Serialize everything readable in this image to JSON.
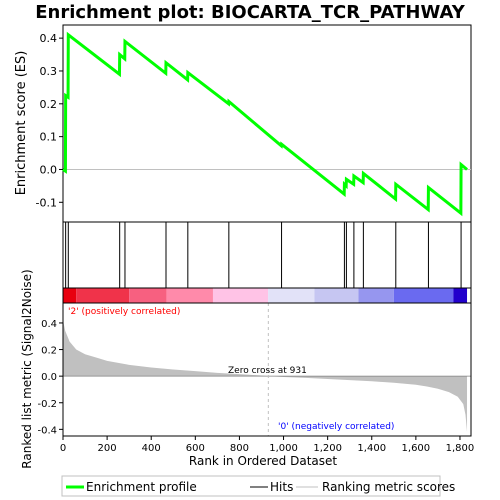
{
  "chart_data": {
    "type": "line",
    "title": "Enrichment plot: BIOCARTA_TCR_PATHWAY",
    "xlabel": "Rank in Ordered Dataset",
    "ylabel_top": "Enrichment score (ES)",
    "ylabel_bottom": "Ranked list metric (Signal2Noise)",
    "xlim": [
      0,
      1850
    ],
    "x_ticks": [
      0,
      200,
      400,
      600,
      800,
      1000,
      1200,
      1400,
      1600,
      1800
    ],
    "x_tick_labels": [
      "0",
      "200",
      "400",
      "600",
      "800",
      "1,000",
      "1,200",
      "1,400",
      "1,600",
      "1,800"
    ],
    "es_ylim": [
      -0.16,
      0.44
    ],
    "es_ticks": [
      -0.1,
      0.0,
      0.1,
      0.2,
      0.3,
      0.4
    ],
    "es_tick_labels": [
      "-0.1",
      "0.0",
      "0.1",
      "0.2",
      "0.3",
      "0.4"
    ],
    "metric_ylim": [
      -0.45,
      0.55
    ],
    "metric_ticks": [
      -0.4,
      -0.2,
      0.0,
      0.2,
      0.4
    ],
    "metric_tick_labels": [
      "-0.4",
      "-0.2",
      "0.0",
      "0.2",
      "0.4"
    ],
    "total_genes": 1832,
    "zero_cross_rank": 931,
    "zero_cross_label": "Zero cross at 931",
    "pos_label": "'2' (positively correlated)",
    "neg_label": "'0' (negatively correlated)",
    "hits": [
      12,
      24,
      257,
      281,
      467,
      566,
      752,
      991,
      1276,
      1285,
      1319,
      1362,
      1509,
      1657,
      1805
    ],
    "running_es": [
      [
        0,
        0.0
      ],
      [
        11,
        -0.005
      ],
      [
        12,
        0.225
      ],
      [
        23,
        0.22
      ],
      [
        24,
        0.41
      ],
      [
        256,
        0.29
      ],
      [
        257,
        0.35
      ],
      [
        280,
        0.337
      ],
      [
        281,
        0.39
      ],
      [
        466,
        0.293
      ],
      [
        467,
        0.325
      ],
      [
        565,
        0.273
      ],
      [
        566,
        0.295
      ],
      [
        751,
        0.2
      ],
      [
        752,
        0.207
      ],
      [
        990,
        0.072
      ],
      [
        991,
        0.077
      ],
      [
        1275,
        -0.075
      ],
      [
        1276,
        -0.045
      ],
      [
        1284,
        -0.05
      ],
      [
        1285,
        -0.03
      ],
      [
        1318,
        -0.045
      ],
      [
        1319,
        -0.02
      ],
      [
        1361,
        -0.04
      ],
      [
        1362,
        -0.012
      ],
      [
        1508,
        -0.09
      ],
      [
        1509,
        -0.045
      ],
      [
        1656,
        -0.122
      ],
      [
        1657,
        -0.055
      ],
      [
        1804,
        -0.133
      ],
      [
        1805,
        0.015
      ],
      [
        1832,
        0.0
      ]
    ],
    "metric_curve": [
      [
        0,
        0.42
      ],
      [
        10,
        0.34
      ],
      [
        30,
        0.26
      ],
      [
        60,
        0.2
      ],
      [
        100,
        0.165
      ],
      [
        150,
        0.14
      ],
      [
        200,
        0.115
      ],
      [
        300,
        0.085
      ],
      [
        400,
        0.065
      ],
      [
        500,
        0.05
      ],
      [
        600,
        0.038
      ],
      [
        700,
        0.025
      ],
      [
        800,
        0.015
      ],
      [
        900,
        0.005
      ],
      [
        931,
        0.0
      ],
      [
        1000,
        -0.006
      ],
      [
        1100,
        -0.013
      ],
      [
        1200,
        -0.021
      ],
      [
        1300,
        -0.03
      ],
      [
        1400,
        -0.038
      ],
      [
        1500,
        -0.05
      ],
      [
        1600,
        -0.065
      ],
      [
        1650,
        -0.078
      ],
      [
        1700,
        -0.095
      ],
      [
        1750,
        -0.12
      ],
      [
        1790,
        -0.155
      ],
      [
        1815,
        -0.21
      ],
      [
        1825,
        -0.29
      ],
      [
        1832,
        -0.42
      ]
    ],
    "colors": {
      "es_line": "#00ff00",
      "hit_line": "#000000",
      "metric_fill": "#c0c0c0",
      "zero_line": "#c0c0c0",
      "pos_text": "#ff0000",
      "neg_text": "#0000ff"
    },
    "heatmap_colors": [
      [
        0,
        60,
        "#e8000f"
      ],
      [
        60,
        300,
        "#f0334a"
      ],
      [
        300,
        470,
        "#f76080"
      ],
      [
        470,
        680,
        "#ff8aaa"
      ],
      [
        680,
        930,
        "#ffc3e6"
      ],
      [
        930,
        1140,
        "#e2e2f8"
      ],
      [
        1140,
        1340,
        "#c6c6f2"
      ],
      [
        1340,
        1500,
        "#9696ef"
      ],
      [
        1500,
        1770,
        "#6a6af0"
      ],
      [
        1770,
        1832,
        "#2200cc"
      ]
    ],
    "legend": [
      {
        "label": "Enrichment profile",
        "kind": "line",
        "color": "#00ff00"
      },
      {
        "label": "Hits",
        "kind": "line",
        "color": "#000000"
      },
      {
        "label": "Ranking metric scores",
        "kind": "line",
        "color": "#c0c0c0"
      }
    ]
  }
}
